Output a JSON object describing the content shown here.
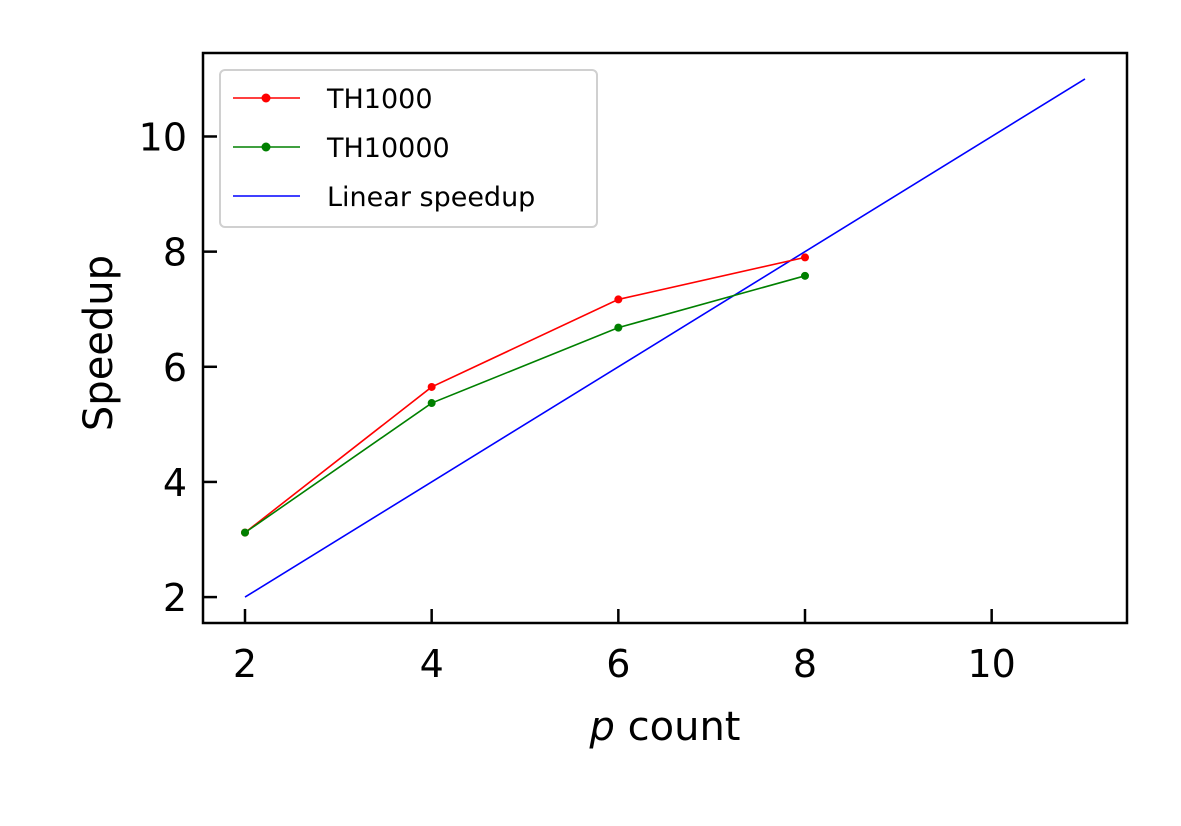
{
  "chart_data": {
    "type": "line",
    "xlabel_italic": "p",
    "xlabel_rest": " count",
    "ylabel": "Speedup",
    "xlim": [
      1.55,
      11.45
    ],
    "ylim": [
      1.55,
      11.45
    ],
    "xticks": [
      2,
      4,
      6,
      8,
      10
    ],
    "yticks": [
      2,
      4,
      6,
      8,
      10
    ],
    "grid": false,
    "legend_position": "upper-left",
    "series": [
      {
        "name": "TH1000",
        "color": "#ff0000",
        "marker": "circle",
        "x": [
          2,
          4,
          6,
          8
        ],
        "y": [
          3.12,
          5.65,
          7.17,
          7.9
        ]
      },
      {
        "name": "TH10000",
        "color": "#008000",
        "marker": "circle",
        "x": [
          2,
          4,
          6,
          8
        ],
        "y": [
          3.12,
          5.37,
          6.68,
          7.58
        ]
      },
      {
        "name": "Linear speedup",
        "color": "#0000ff",
        "marker": "none",
        "x": [
          2,
          11
        ],
        "y": [
          2,
          11
        ]
      }
    ]
  }
}
